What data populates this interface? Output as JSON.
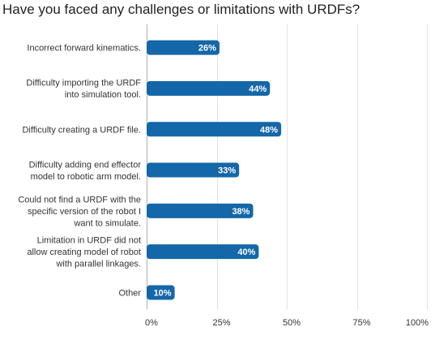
{
  "chart_data": {
    "type": "bar",
    "orientation": "horizontal",
    "title": "Have you faced any challenges or limitations with URDFs?",
    "categories": [
      [
        "Incorrect forward kinematics."
      ],
      [
        "Difficulty importing the URDF",
        "into simulation tool."
      ],
      [
        "Difficulty creating a URDF file."
      ],
      [
        "Difficulty adding end effector",
        "model to robotic arm model."
      ],
      [
        "Could not find a URDF with the",
        "specific version of the robot I",
        "want to simulate."
      ],
      [
        "Limitation in URDF did not",
        "allow creating model of robot",
        "with parallel linkages."
      ],
      [
        "Other"
      ]
    ],
    "values": [
      26,
      44,
      48,
      33,
      38,
      40,
      10
    ],
    "value_labels": [
      "26%",
      "44%",
      "48%",
      "33%",
      "38%",
      "40%",
      "10%"
    ],
    "xlim": [
      0,
      100
    ],
    "xticks": [
      "0%",
      "25%",
      "50%",
      "75%",
      "100%"
    ],
    "xtick_values": [
      0,
      25,
      50,
      75,
      100
    ],
    "grid": true,
    "bar_color": "#1467a8"
  }
}
